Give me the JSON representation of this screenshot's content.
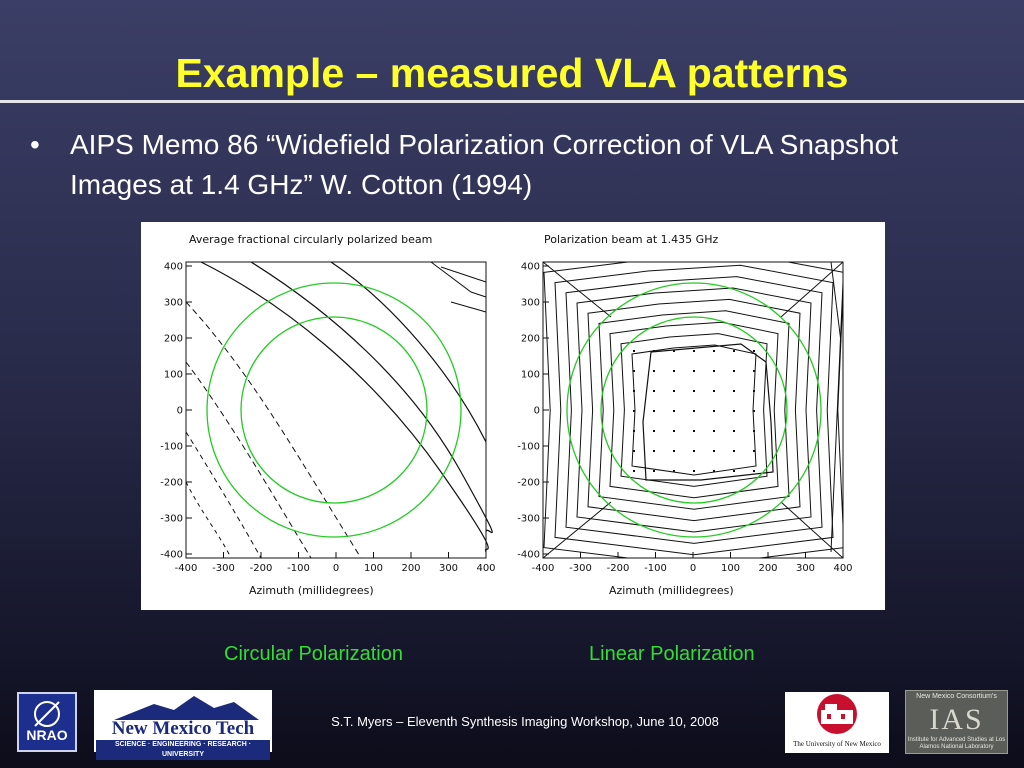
{
  "slide": {
    "title": "Example – measured VLA patterns",
    "bullet_symbol": "•",
    "bullet_text": "AIPS Memo 86 “Widefield Polarization Correction of VLA Snapshot Images at 1.4 GHz” W. Cotton (1994)",
    "caption_left": "Circular Polarization",
    "caption_right": "Linear Polarization",
    "footer": "S.T. Myers – Eleventh Synthesis Imaging Workshop, June 10, 2008"
  },
  "figure": {
    "left_title": "Average fractional circularly polarized beam",
    "right_title": "Polarization beam at 1.435 GHz",
    "xlabel": "Azimuth (millidegrees)",
    "ticks": [
      "-400",
      "-300",
      "-200",
      "-100",
      "0",
      "100",
      "200",
      "300",
      "400"
    ],
    "yticks": [
      "400",
      "300",
      "200",
      "100",
      "0",
      "-100",
      "-200",
      "-300",
      "-400"
    ],
    "circle_color": "#22cc22"
  },
  "logos": {
    "nrao": "NRAO",
    "nmt_name": "New Mexico Tech",
    "nmt_tagline": "SCIENCE · ENGINEERING · RESEARCH · UNIVERSITY",
    "unm": "The University of New Mexico",
    "ias_top": "New Mexico Consortium's",
    "ias_big": "IAS",
    "ias_sub": "Institute for Advanced Studies at Los Alamos National Laboratory"
  },
  "colors": {
    "title": "#ffff2a",
    "caption": "#33dd33",
    "background": "#2a2c4c"
  }
}
